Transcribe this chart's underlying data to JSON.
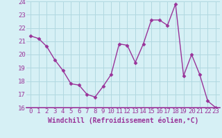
{
  "x": [
    0,
    1,
    2,
    3,
    4,
    5,
    6,
    7,
    8,
    9,
    10,
    11,
    12,
    13,
    14,
    15,
    16,
    17,
    18,
    19,
    20,
    21,
    22,
    23
  ],
  "y": [
    21.4,
    21.2,
    20.6,
    19.6,
    18.8,
    17.8,
    17.7,
    17.0,
    16.8,
    17.6,
    18.5,
    20.8,
    20.7,
    19.4,
    20.8,
    22.6,
    22.6,
    22.2,
    23.8,
    18.4,
    20.0,
    18.5,
    16.5,
    16.0
  ],
  "line_color": "#993399",
  "marker": "D",
  "marker_size": 2.5,
  "bg_color": "#d6f0f5",
  "grid_color": "#b0d8e0",
  "border_color": "#993399",
  "xlabel": "Windchill (Refroidissement éolien,°C)",
  "xlabel_color": "#993399",
  "tick_color": "#993399",
  "ylim": [
    16,
    24
  ],
  "xlim": [
    -0.5,
    23.5
  ],
  "yticks": [
    16,
    17,
    18,
    19,
    20,
    21,
    22,
    23,
    24
  ],
  "xticks": [
    0,
    1,
    2,
    3,
    4,
    5,
    6,
    7,
    8,
    9,
    10,
    11,
    12,
    13,
    14,
    15,
    16,
    17,
    18,
    19,
    20,
    21,
    22,
    23
  ],
  "font_size_ticks": 6.5,
  "font_size_xlabel": 7,
  "linewidth": 1.0
}
